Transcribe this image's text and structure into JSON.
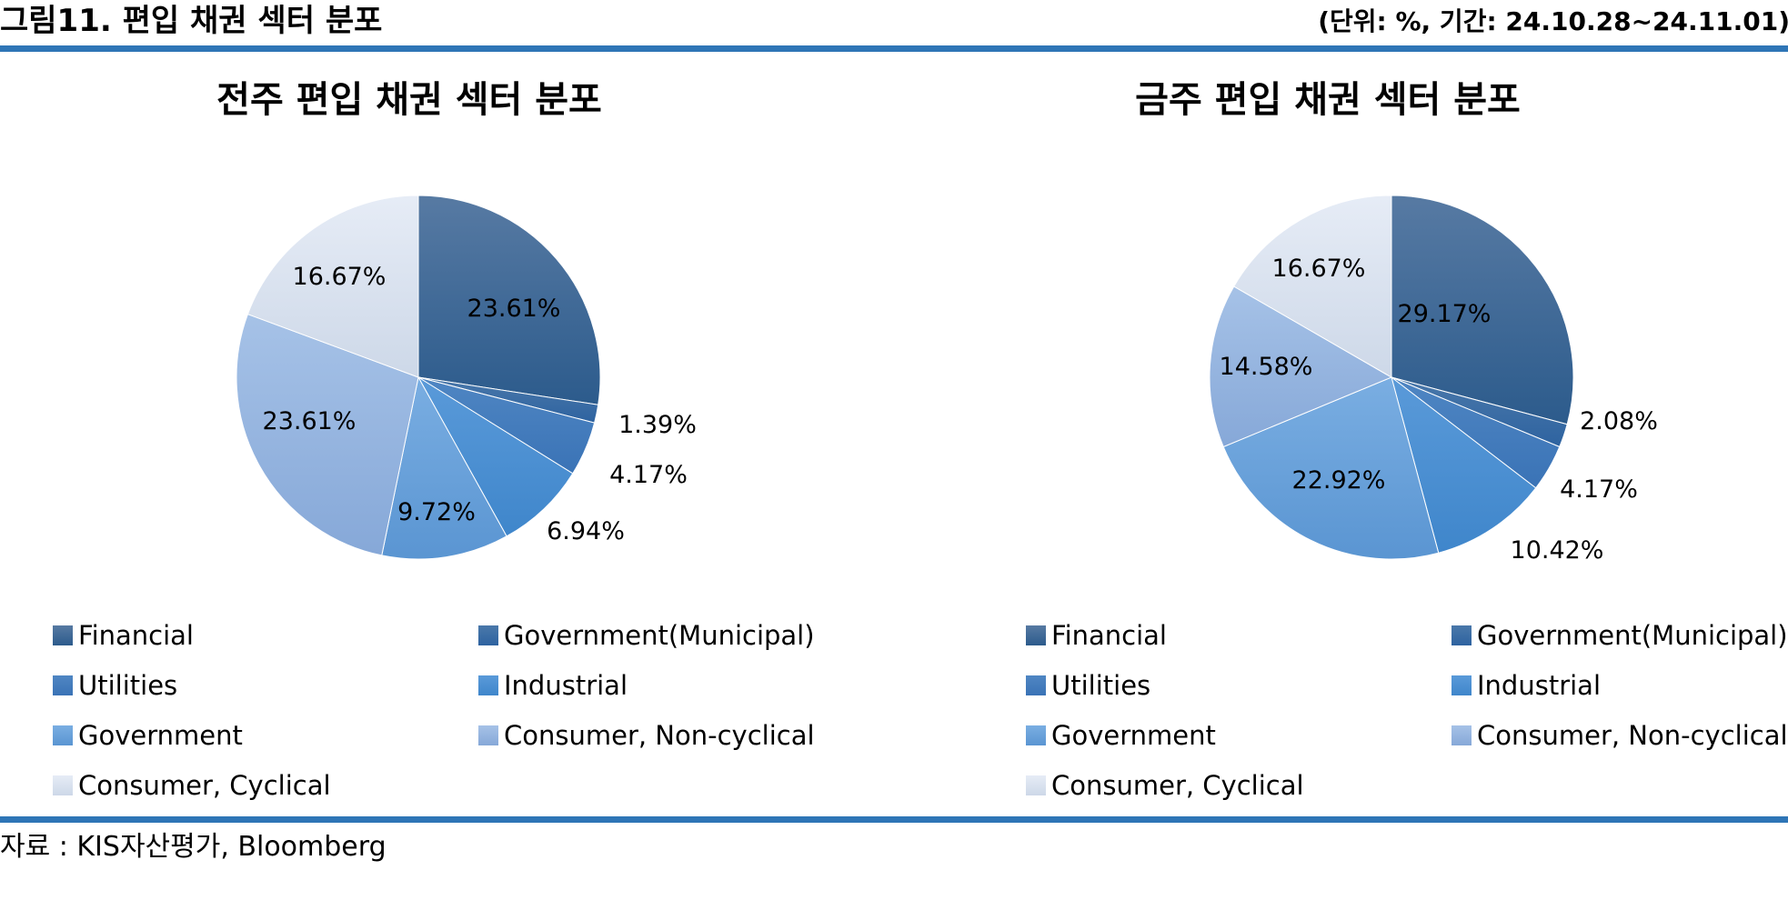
{
  "header": {
    "figure_title": "그림11. 편입 채권 섹터 분포",
    "unit_period": "(단위: %, 기간: 24.10.28~24.11.01)"
  },
  "footer": {
    "source": "자료 : KIS자산평가, Bloomberg"
  },
  "colors": {
    "rule": "#2e75b6",
    "Financial": [
      "#577aa3",
      "#2c5b8c"
    ],
    "Government(Municipal)": [
      "#4a78aa",
      "#2e63a0"
    ],
    "Utilities": [
      "#4f86c3",
      "#3a73b6"
    ],
    "Industrial": [
      "#5a9ad9",
      "#3f86cb"
    ],
    "Government": [
      "#7aaee2",
      "#5a95d2"
    ],
    "Consumer, Non-cyclical": [
      "#a6c2e7",
      "#86a8d8"
    ],
    "Consumer, Cyclical": [
      "#e6ecf6",
      "#cdd8e8"
    ]
  },
  "chart_data": [
    {
      "type": "pie",
      "title": "전주 편입 채권 섹터 분포",
      "categories": [
        "Financial",
        "Government(Municipal)",
        "Utilities",
        "Industrial",
        "Government",
        "Consumer, Non-cyclical",
        "Consumer, Cyclical"
      ],
      "values": [
        23.61,
        1.39,
        4.17,
        6.94,
        9.72,
        23.61,
        16.67
      ],
      "labels": [
        "23.61%",
        "1.39%",
        "4.17%",
        "6.94%",
        "9.72%",
        "23.61%",
        "16.67%"
      ],
      "start_angle": "12 o'clock",
      "direction": "clockwise",
      "legend": "bottom"
    },
    {
      "type": "pie",
      "title": "금주 편입 채권 섹터 분포",
      "categories": [
        "Financial",
        "Government(Municipal)",
        "Utilities",
        "Industrial",
        "Government",
        "Consumer, Non-cyclical",
        "Consumer, Cyclical"
      ],
      "values": [
        29.17,
        2.08,
        4.17,
        10.42,
        22.92,
        14.58,
        16.67
      ],
      "labels": [
        "29.17%",
        "2.08%",
        "4.17%",
        "10.42%",
        "22.92%",
        "14.58%",
        "16.67%"
      ],
      "start_angle": "12 o'clock",
      "direction": "clockwise",
      "legend": "bottom"
    }
  ]
}
